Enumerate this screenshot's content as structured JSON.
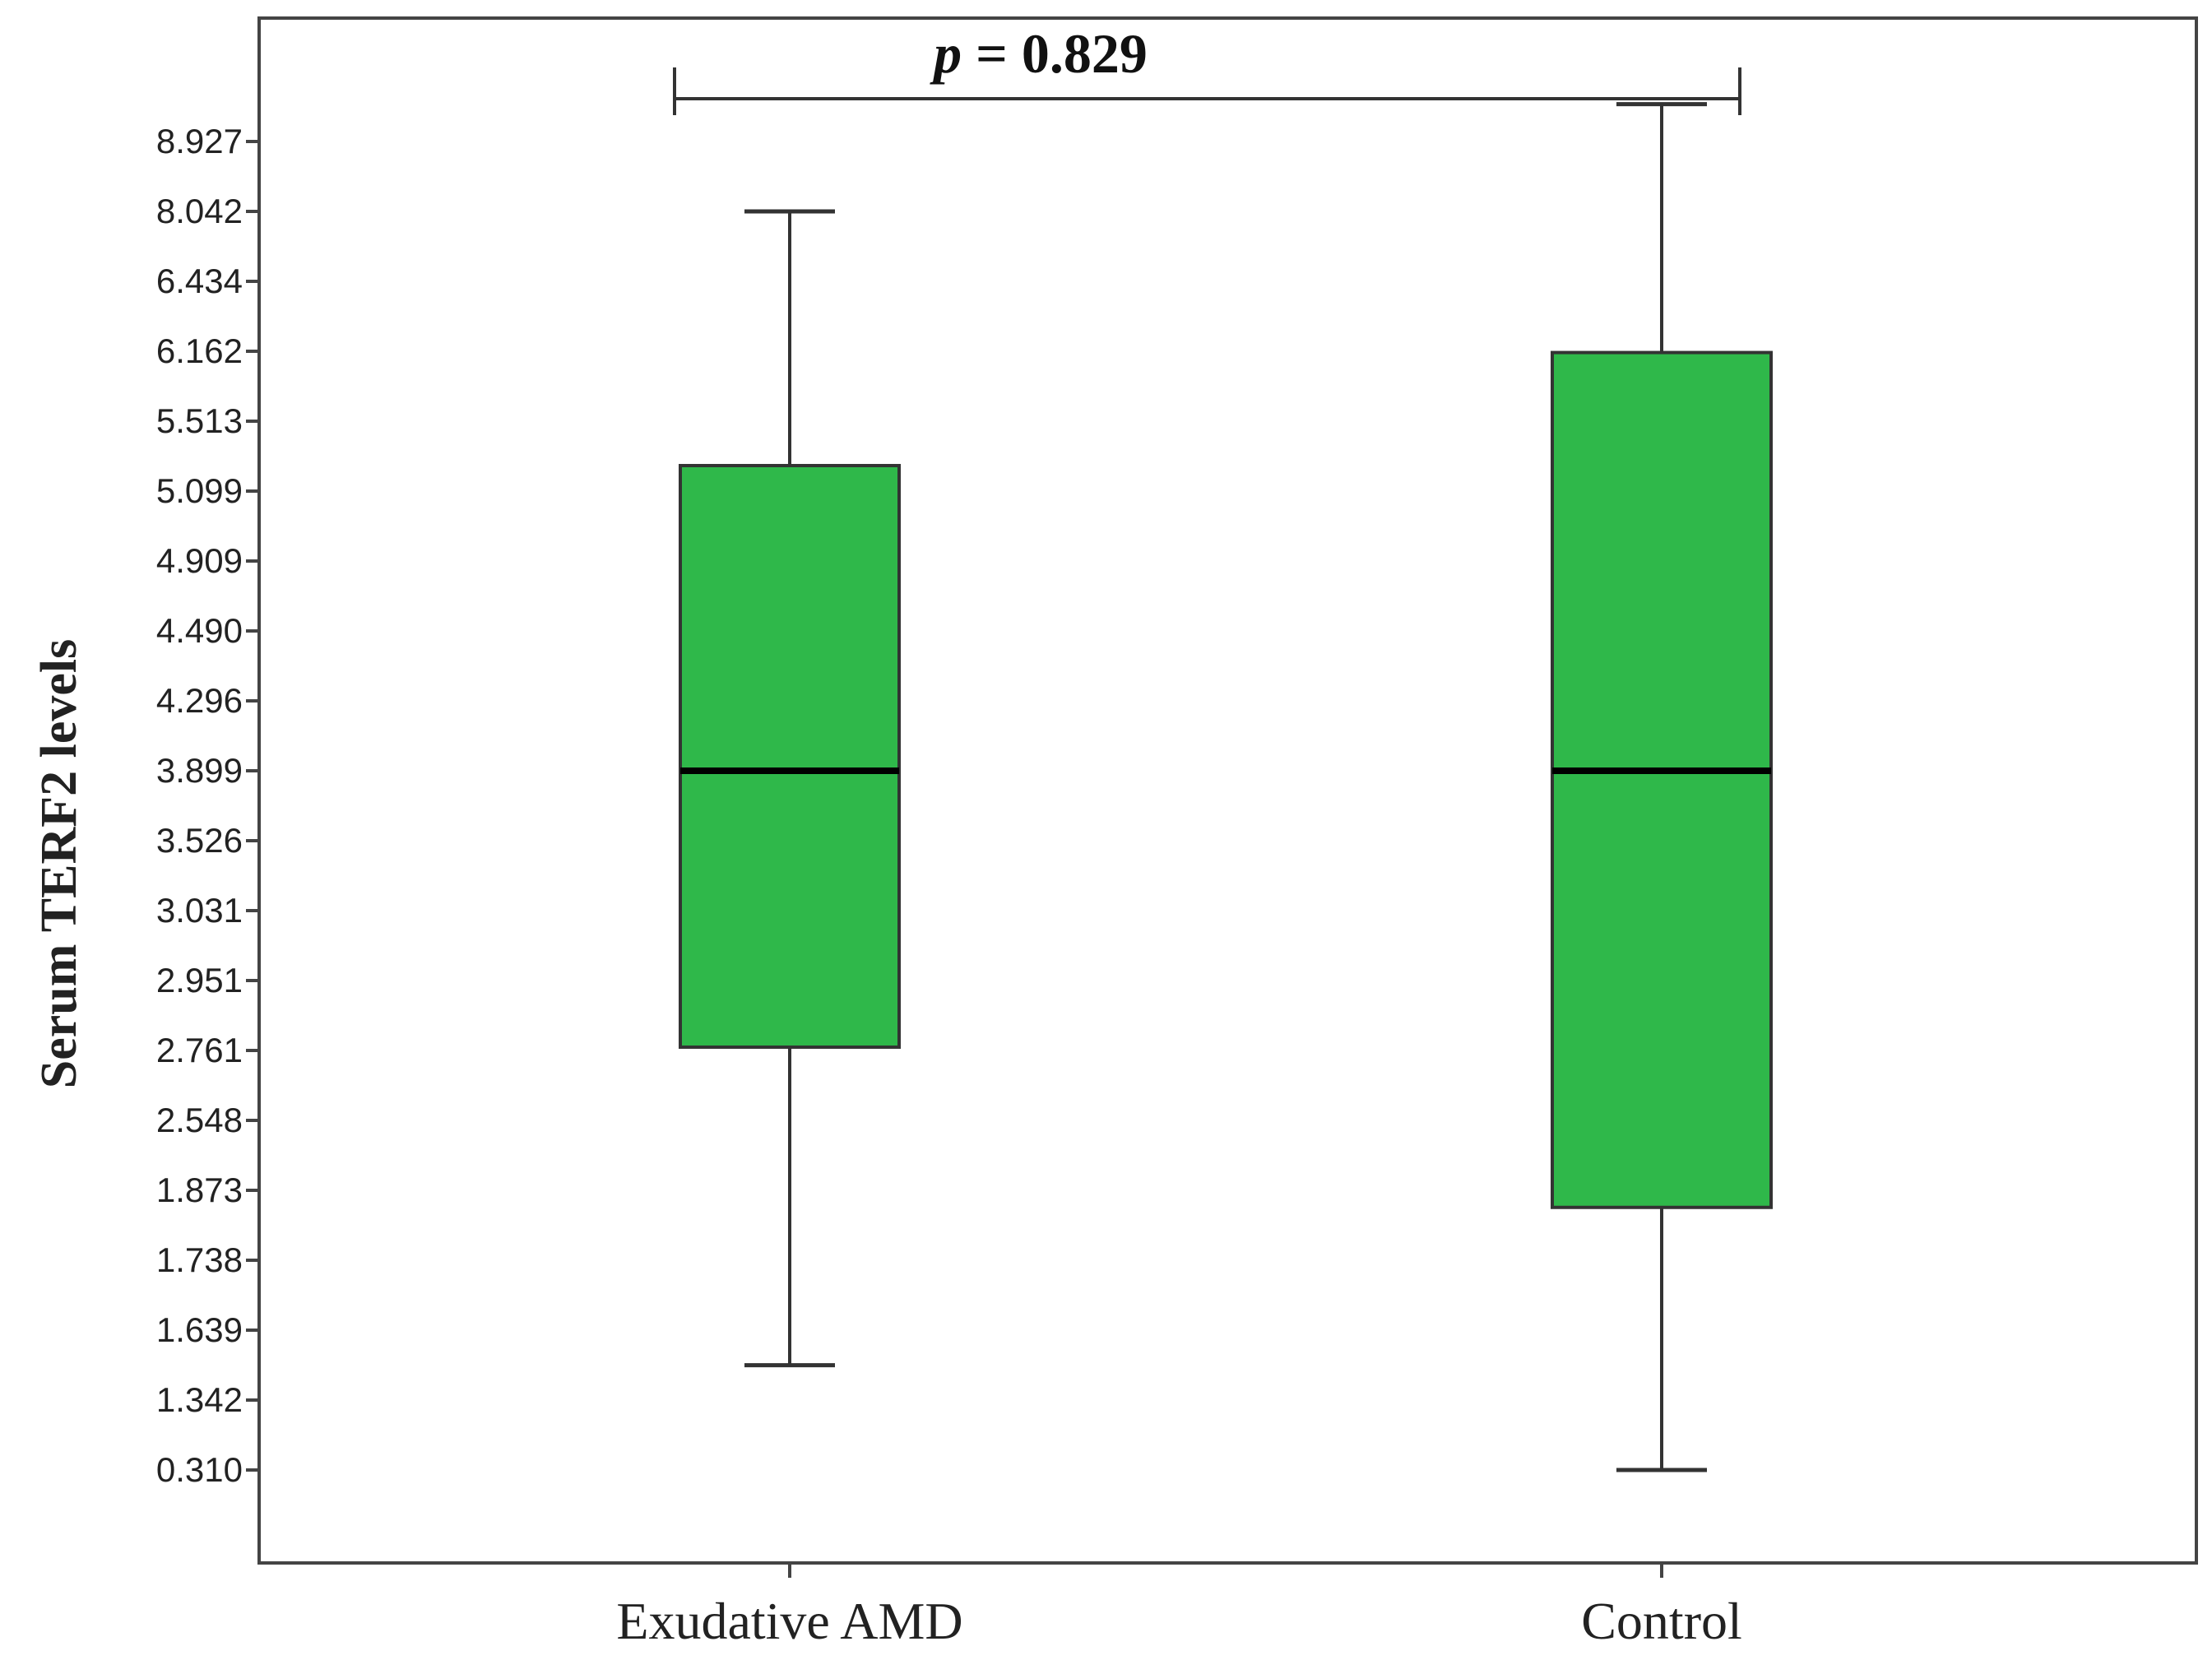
{
  "chart_data": {
    "type": "box",
    "ylabel": "Serum TERF2 levels",
    "y_tick_labels": [
      "0.310",
      "1.342",
      "1.639",
      "1.738",
      "1.873",
      "2.548",
      "2.761",
      "2.951",
      "3.031",
      "3.526",
      "3.899",
      "4.296",
      "4.490",
      "4.909",
      "5.099",
      "5.513",
      "6.162",
      "6.434",
      "8.042",
      "8.927"
    ],
    "y_axis_note": "tick labels are evenly spaced (categorical), not linear",
    "categories": [
      "Exudative AMD",
      "Control"
    ],
    "boxes": [
      {
        "name": "Exudative AMD",
        "whisker_low": 1.49,
        "q1": 2.77,
        "median": 3.899,
        "q3": 5.25,
        "whisker_high": 8.042
      },
      {
        "name": "Control",
        "whisker_low": 0.31,
        "q1": 1.84,
        "median": 3.899,
        "q3": 6.15,
        "whisker_high": 9.4
      }
    ],
    "box_color": "#2fb84a",
    "annotation": {
      "p_symbol": "p",
      "p_text": " = 0.829"
    },
    "grid": false,
    "legend": "none"
  }
}
